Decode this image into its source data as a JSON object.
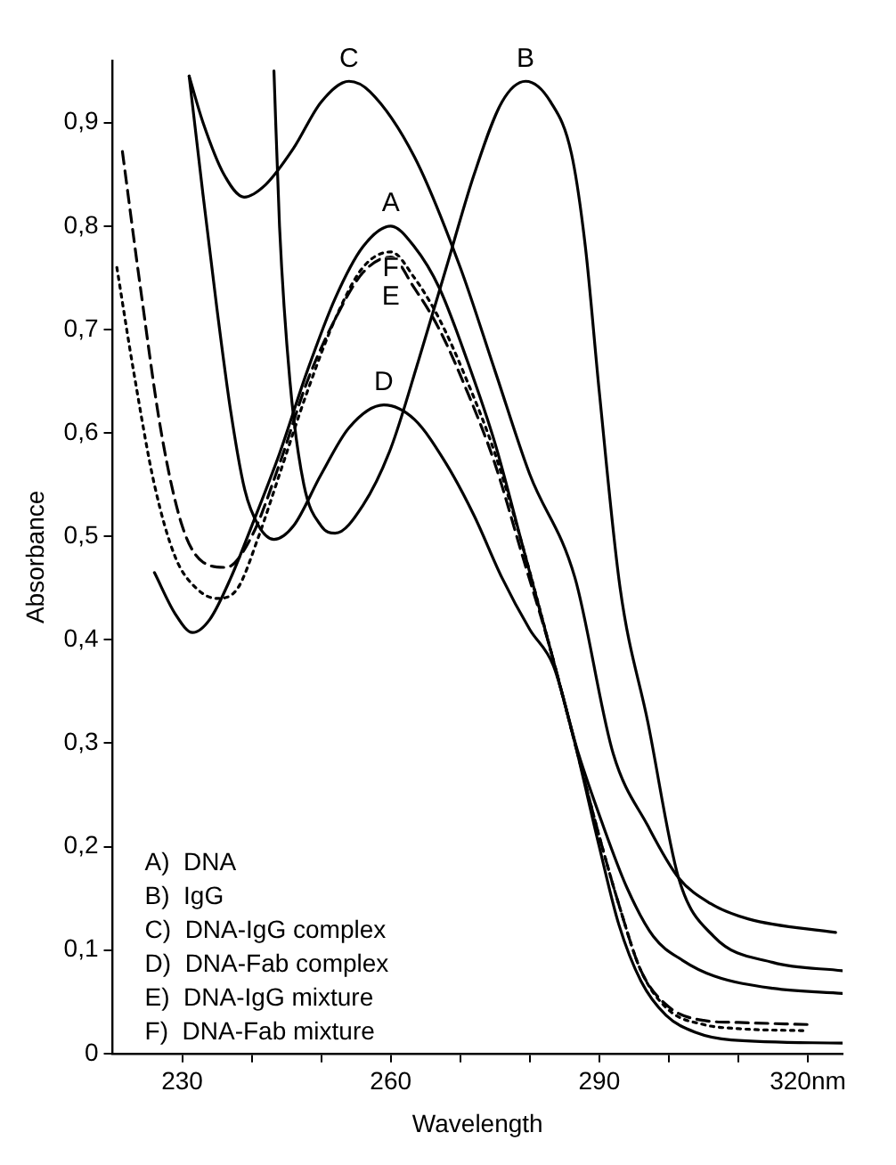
{
  "chart_data": {
    "type": "line",
    "xlabel": "Wavelength",
    "ylabel": "Absorbance",
    "xlim": [
      220,
      325
    ],
    "xticks": [
      {
        "value": 230,
        "label": "230"
      },
      {
        "value": 240,
        "label": null
      },
      {
        "value": 250,
        "label": null
      },
      {
        "value": 260,
        "label": "260"
      },
      {
        "value": 270,
        "label": null
      },
      {
        "value": 280,
        "label": null
      },
      {
        "value": 290,
        "label": "290"
      },
      {
        "value": 300,
        "label": null
      },
      {
        "value": 310,
        "label": null
      },
      {
        "value": 320,
        "label": "320nm"
      }
    ],
    "ylim": [
      0,
      0.96
    ],
    "yticks": [
      0,
      {
        "value": 0.1,
        "label": "0,1"
      },
      {
        "value": 0.2,
        "label": "0,2"
      },
      {
        "value": 0.3,
        "label": "0,3"
      },
      {
        "value": 0.4,
        "label": "0,4"
      },
      {
        "value": 0.5,
        "label": "0,5"
      },
      {
        "value": 0.6,
        "label": "0,6"
      },
      {
        "value": 0.7,
        "label": "0,7"
      },
      {
        "value": 0.8,
        "label": "0,8"
      },
      {
        "value": 0.9,
        "label": "0,9"
      }
    ],
    "grid": false,
    "legend": false,
    "marker": "none",
    "annotations": [
      "A)  DNA",
      "B)  IgG",
      "C)  DNA-IgG complex",
      "D)  DNA-Fab complex",
      "E)  DNA-IgG mixture",
      "F)  DNA-Fab mixture"
    ],
    "series": [
      {
        "name": "A",
        "color": "#000000",
        "line_style": "solid",
        "x": [
          226,
          229,
          231.5,
          234,
          237,
          240,
          244,
          248,
          252,
          256,
          260,
          263.4,
          267,
          271,
          275,
          279,
          283,
          286.5,
          290,
          292.8,
          296,
          299.6,
          304,
          309,
          325
        ],
        "values": [
          0.465,
          0.425,
          0.407,
          0.42,
          0.46,
          0.51,
          0.58,
          0.66,
          0.73,
          0.78,
          0.8,
          0.78,
          0.74,
          0.67,
          0.59,
          0.49,
          0.39,
          0.3,
          0.2,
          0.125,
          0.07,
          0.037,
          0.02,
          0.013,
          0.01
        ]
      },
      {
        "name": "B",
        "color": "#000000",
        "line_style": "solid",
        "x": [
          243.2,
          244,
          245.5,
          247.5,
          250,
          252,
          256,
          260,
          264,
          268,
          272,
          276,
          279.4,
          283,
          286,
          288,
          290,
          293,
          297,
          301.4,
          306.5,
          315,
          325
        ],
        "values": [
          0.95,
          0.8,
          0.65,
          0.55,
          0.51,
          0.503,
          0.53,
          0.585,
          0.67,
          0.76,
          0.85,
          0.92,
          0.94,
          0.92,
          0.87,
          0.78,
          0.64,
          0.45,
          0.32,
          0.17,
          0.113,
          0.088,
          0.08
        ]
      },
      {
        "name": "C",
        "color": "#000000",
        "line_style": "solid",
        "x": [
          231,
          233,
          236,
          238.9,
          242,
          246,
          250,
          254,
          257,
          263.4,
          270,
          275,
          280,
          286.5,
          292,
          297,
          301.4,
          306,
          311.5,
          324
        ],
        "values": [
          0.945,
          0.9,
          0.85,
          0.828,
          0.84,
          0.875,
          0.92,
          0.94,
          0.93,
          0.867,
          0.76,
          0.66,
          0.56,
          0.46,
          0.29,
          0.22,
          0.17,
          0.145,
          0.13,
          0.117
        ]
      },
      {
        "name": "D",
        "color": "#000000",
        "line_style": "solid",
        "x": [
          231,
          233,
          235,
          237,
          239,
          241,
          243.2,
          246,
          250,
          254,
          259,
          263.4,
          268,
          272,
          276,
          280,
          283.4,
          287,
          290.3,
          294,
          297.8,
          302,
          306.5,
          315,
          325
        ],
        "values": [
          0.945,
          0.83,
          0.72,
          0.62,
          0.545,
          0.51,
          0.497,
          0.51,
          0.56,
          0.605,
          0.627,
          0.613,
          0.57,
          0.52,
          0.46,
          0.41,
          0.375,
          0.29,
          0.225,
          0.16,
          0.113,
          0.09,
          0.075,
          0.063,
          0.058
        ]
      },
      {
        "name": "E",
        "color": "#000000",
        "line_style": "dashed",
        "x": [
          221.4,
          224,
          227,
          230,
          233,
          236.3,
          240,
          244,
          248,
          252,
          256,
          260,
          263.4,
          267,
          271,
          275,
          279,
          283,
          286.5,
          290,
          293,
          296,
          300,
          305,
          310,
          320
        ],
        "values": [
          0.872,
          0.74,
          0.6,
          0.51,
          0.475,
          0.47,
          0.5,
          0.57,
          0.65,
          0.71,
          0.755,
          0.77,
          0.74,
          0.7,
          0.64,
          0.57,
          0.48,
          0.39,
          0.3,
          0.21,
          0.14,
          0.08,
          0.045,
          0.032,
          0.03,
          0.028
        ]
      },
      {
        "name": "F",
        "color": "#000000",
        "line_style": "dotted",
        "x": [
          220.6,
          223,
          226,
          229,
          232,
          235,
          238,
          241,
          244,
          248,
          252,
          256,
          260,
          263.4,
          267,
          271,
          275,
          279,
          283,
          286.5,
          290,
          293,
          296,
          300,
          305,
          310,
          320
        ],
        "values": [
          0.76,
          0.66,
          0.55,
          0.48,
          0.45,
          0.44,
          0.45,
          0.5,
          0.56,
          0.64,
          0.71,
          0.76,
          0.775,
          0.75,
          0.71,
          0.65,
          0.58,
          0.49,
          0.39,
          0.3,
          0.21,
          0.14,
          0.08,
          0.042,
          0.028,
          0.024,
          0.022
        ]
      }
    ]
  }
}
